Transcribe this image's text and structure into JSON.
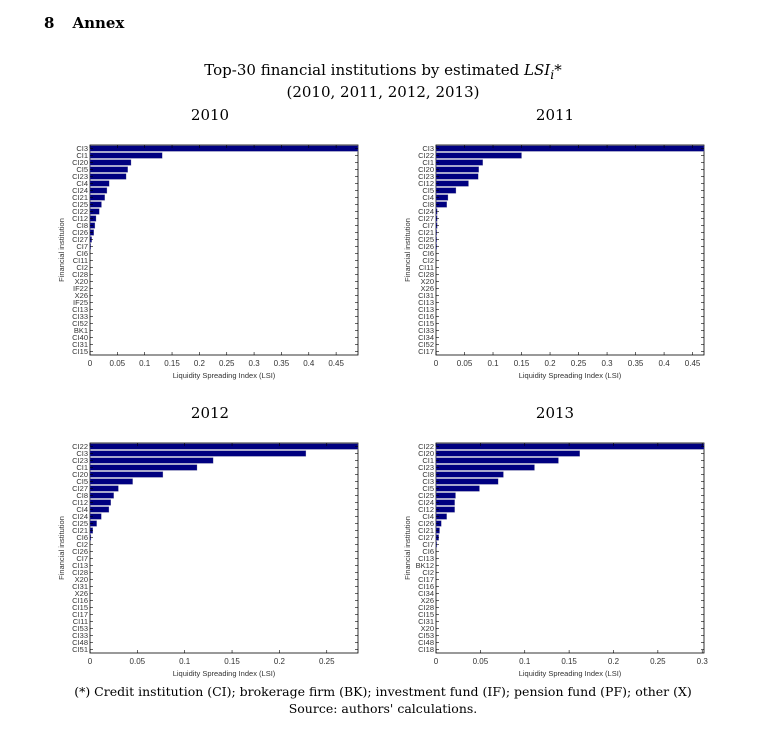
{
  "section": {
    "number": "8",
    "title": "Annex"
  },
  "figure": {
    "title_prefix": "Top-30 financial institutions by estimated ",
    "title_var": "LSI",
    "title_sub": "i",
    "title_suffix": "*",
    "subtitle": "(2010, 2011, 2012, 2013)"
  },
  "footer": {
    "note": "(*) Credit institution (CI); brokerage firm (BK); investment fund (IF); pension fund (PF); other (X)",
    "source": "Source: authors' calculations."
  },
  "chart_data": [
    {
      "type": "bar",
      "orientation": "horizontal",
      "title": "2010",
      "xlabel": "Liquidity Spreading Index (LSI)",
      "ylabel": "Financial institution",
      "xlim": [
        0,
        0.49
      ],
      "xticks": [
        "0",
        "0.05",
        "0.1",
        "0.15",
        "0.2",
        "0.25",
        "0.3",
        "0.35",
        "0.4",
        "0.45"
      ],
      "bar_color": "#000080",
      "categories": [
        "CI3",
        "CI1",
        "CI20",
        "CI5",
        "CI23",
        "CI4",
        "CI24",
        "CI21",
        "CI25",
        "CI22",
        "CI12",
        "CI8",
        "CI26",
        "CI27",
        "CI7",
        "CI6",
        "CI11",
        "CI2",
        "CI28",
        "X20",
        "IF22",
        "X26",
        "IF25",
        "CI13",
        "CI33",
        "CI52",
        "BK1",
        "CI40",
        "CI31",
        "CI15"
      ],
      "values": [
        0.49,
        0.132,
        0.075,
        0.069,
        0.066,
        0.035,
        0.031,
        0.027,
        0.021,
        0.017,
        0.011,
        0.009,
        0.007,
        0.003,
        0.001,
        0,
        0,
        0,
        0,
        0,
        0,
        0,
        0,
        0,
        0,
        0,
        0,
        0,
        0,
        0
      ]
    },
    {
      "type": "bar",
      "orientation": "horizontal",
      "title": "2011",
      "xlabel": "Liquidity Spreading Index (LSI)",
      "ylabel": "Financial institution",
      "xlim": [
        0,
        0.47
      ],
      "xticks": [
        "0",
        "0.05",
        "0.1",
        "0.15",
        "0.2",
        "0.25",
        "0.3",
        "0.35",
        "0.4",
        "0.45"
      ],
      "bar_color": "#000080",
      "categories": [
        "CI3",
        "CI22",
        "CI1",
        "CI20",
        "CI23",
        "CI12",
        "CI5",
        "CI4",
        "CI8",
        "CI24",
        "CI27",
        "CI7",
        "CI21",
        "CI25",
        "CI26",
        "CI6",
        "CI2",
        "CI11",
        "CI28",
        "X20",
        "X26",
        "CI31",
        "CI13",
        "CI13",
        "CI16",
        "CI15",
        "CI33",
        "CI34",
        "CI52",
        "CI17"
      ],
      "values": [
        0.47,
        0.15,
        0.082,
        0.075,
        0.074,
        0.057,
        0.035,
        0.021,
        0.019,
        0.002,
        0.002,
        0.002,
        0.001,
        0.001,
        0.001,
        0,
        0,
        0,
        0,
        0,
        0,
        0,
        0,
        0,
        0,
        0,
        0,
        0,
        0,
        0
      ]
    },
    {
      "type": "bar",
      "orientation": "horizontal",
      "title": "2012",
      "xlabel": "Liquidity Spreading Index (LSI)",
      "ylabel": "Financial institution",
      "xlim": [
        0,
        0.283
      ],
      "xticks": [
        "0",
        "0.05",
        "0.1",
        "0.15",
        "0.2",
        "0.25"
      ],
      "bar_color": "#000080",
      "categories": [
        "CI22",
        "CI3",
        "CI23",
        "CI1",
        "CI20",
        "CI5",
        "CI27",
        "CI8",
        "CI12",
        "CI4",
        "CI24",
        "CI25",
        "CI21",
        "CI6",
        "CI2",
        "CI26",
        "CI7",
        "CI13",
        "CI28",
        "X20",
        "CI31",
        "X26",
        "CI16",
        "CI15",
        "CI17",
        "CI11",
        "CI53",
        "CI33",
        "CI48",
        "CI51"
      ],
      "values": [
        0.283,
        0.228,
        0.13,
        0.113,
        0.077,
        0.045,
        0.03,
        0.025,
        0.022,
        0.02,
        0.012,
        0.007,
        0.003,
        0.001,
        0,
        0,
        0,
        0,
        0,
        0,
        0,
        0,
        0,
        0,
        0,
        0,
        0,
        0,
        0,
        0
      ]
    },
    {
      "type": "bar",
      "orientation": "horizontal",
      "title": "2013",
      "xlabel": "Liquidity Spreading Index (LSI)",
      "ylabel": "Financial institution",
      "xlim": [
        0,
        0.302
      ],
      "xticks": [
        "0",
        "0.05",
        "0.1",
        "0.15",
        "0.2",
        "0.25",
        "0.3"
      ],
      "bar_color": "#000080",
      "categories": [
        "CI22",
        "CI20",
        "CI1",
        "CI23",
        "CI8",
        "CI3",
        "CI5",
        "CI25",
        "CI24",
        "CI12",
        "CI4",
        "CI26",
        "CI21",
        "CI27",
        "CI7",
        "CI6",
        "CI13",
        "BK12",
        "CI2",
        "CI17",
        "CI16",
        "CI34",
        "X26",
        "CI28",
        "CI15",
        "CI31",
        "X20",
        "CI53",
        "CI48",
        "CI18"
      ],
      "values": [
        0.302,
        0.162,
        0.138,
        0.111,
        0.076,
        0.07,
        0.049,
        0.022,
        0.021,
        0.021,
        0.012,
        0.006,
        0.004,
        0.003,
        0.001,
        0,
        0,
        0,
        0,
        0,
        0,
        0,
        0,
        0,
        0,
        0,
        0,
        0,
        0,
        0
      ]
    }
  ]
}
